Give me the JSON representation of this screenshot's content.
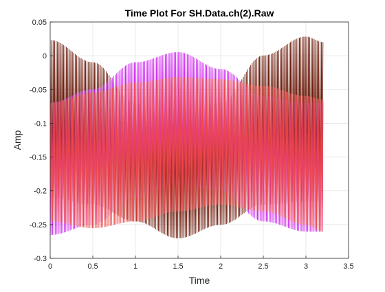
{
  "chart_data": {
    "type": "line",
    "title": "Time Plot For SH.Data.ch(2).Raw",
    "xlabel": "Time",
    "ylabel": "Amp",
    "xlim": [
      0,
      3.5
    ],
    "ylim": [
      -0.3,
      0.05
    ],
    "xticks": [
      0,
      0.5,
      1,
      1.5,
      2,
      2.5,
      3,
      3.5
    ],
    "xtick_labels": [
      "0",
      "0.5",
      "1",
      "1.5",
      "2",
      "2.5",
      "3",
      "3.5"
    ],
    "yticks": [
      -0.3,
      -0.25,
      -0.2,
      -0.15,
      -0.1,
      -0.05,
      0,
      0.05
    ],
    "ytick_labels": [
      "-0.3",
      "-0.25",
      "-0.2",
      "-0.15",
      "-0.1",
      "-0.05",
      "0",
      "0.05"
    ],
    "grid": true,
    "legend": "none",
    "x_range_data": [
      0,
      3.2
    ],
    "series": [
      {
        "color": "#6b1a0a",
        "description": "dark brown oscillation, beating envelope",
        "envelope_x": [
          0,
          0.5,
          1.0,
          1.5,
          2.0,
          2.5,
          3.0,
          3.2
        ],
        "envelope_upper": [
          0.023,
          -0.01,
          -0.07,
          -0.105,
          -0.07,
          0.0,
          0.028,
          0.02
        ],
        "envelope_lower": [
          -0.21,
          -0.22,
          -0.245,
          -0.27,
          -0.25,
          -0.22,
          -0.215,
          -0.215
        ]
      },
      {
        "color": "#cc22ee",
        "description": "magenta oscillation",
        "envelope_x": [
          0,
          0.5,
          1.0,
          1.5,
          2.0,
          2.5,
          3.0,
          3.2
        ],
        "envelope_upper": [
          -0.07,
          -0.05,
          -0.01,
          0.005,
          -0.02,
          -0.06,
          -0.07,
          -0.07
        ],
        "envelope_lower": [
          -0.265,
          -0.25,
          -0.21,
          -0.19,
          -0.2,
          -0.245,
          -0.26,
          -0.26
        ]
      },
      {
        "color": "#ee4848",
        "description": "red oscillation",
        "envelope_x": [
          0,
          0.5,
          1.0,
          1.5,
          2.0,
          2.5,
          3.0,
          3.2
        ],
        "envelope_upper": [
          -0.07,
          -0.055,
          -0.04,
          -0.032,
          -0.035,
          -0.045,
          -0.06,
          -0.065
        ],
        "envelope_lower": [
          -0.245,
          -0.255,
          -0.245,
          -0.23,
          -0.22,
          -0.23,
          -0.25,
          -0.26
        ]
      }
    ]
  }
}
